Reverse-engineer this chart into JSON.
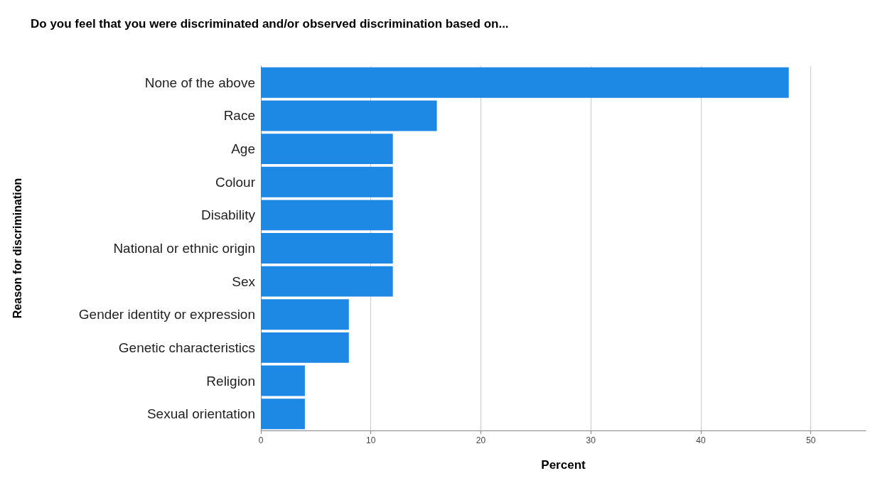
{
  "chart_data": {
    "type": "bar",
    "orientation": "horizontal",
    "title": "Do you feel that you were discriminated and/or observed discrimination based on...",
    "xlabel": "Percent",
    "ylabel": "Reason for discrimination",
    "categories": [
      "None of the above",
      "Race",
      "Age",
      "Colour",
      "Disability",
      "National or ethnic origin",
      "Sex",
      "Gender identity or expression",
      "Genetic characteristics",
      "Religion",
      "Sexual orientation"
    ],
    "values": [
      48,
      16,
      12,
      12,
      12,
      12,
      12,
      8,
      8,
      4,
      4
    ],
    "color": "#1e88e5",
    "xlim": [
      0,
      55
    ],
    "xticks": [
      0,
      10,
      20,
      30,
      40,
      50
    ],
    "grid": "x"
  }
}
